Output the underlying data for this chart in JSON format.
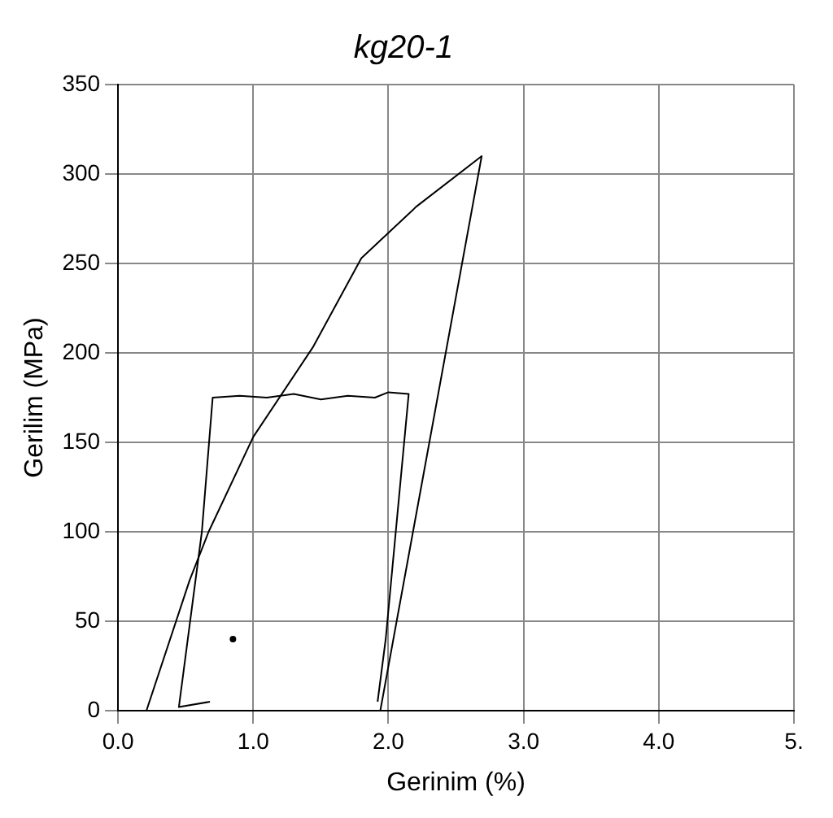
{
  "chart_data": {
    "type": "line",
    "title": "kg20-1",
    "xlabel": "Gerinim (%)",
    "ylabel": "Gerilim (MPa)",
    "xlim": [
      0,
      5
    ],
    "xticks": [
      {
        "value": 0,
        "label": "0.0"
      },
      {
        "value": 1,
        "label": "1.0"
      },
      {
        "value": 2,
        "label": "2.0"
      },
      {
        "value": 3,
        "label": "3.0"
      },
      {
        "value": 4,
        "label": "4.0"
      },
      {
        "value": 5,
        "label": "5."
      }
    ],
    "ylim": [
      0,
      350
    ],
    "yticks": [
      0,
      50,
      100,
      150,
      200,
      250,
      300,
      350
    ],
    "grid": true,
    "legend": false,
    "marker": "none",
    "line_style": "solid",
    "series": [
      {
        "color": "#000000",
        "x": [
          0.21,
          0.53,
          0.67,
          1.0,
          1.44,
          1.8,
          2.21,
          2.69,
          1.94
        ],
        "values": [
          0,
          73,
          100,
          153,
          203,
          253,
          282,
          310,
          0
        ]
      },
      {
        "color": "#000000",
        "x": [
          0.68,
          0.45,
          0.62,
          0.7,
          0.9,
          1.1,
          1.3,
          1.5,
          1.7,
          1.9,
          2.0,
          2.15,
          1.98,
          1.92
        ],
        "values": [
          5,
          2,
          100,
          175,
          176,
          175,
          177,
          174,
          176,
          175,
          178,
          177,
          40,
          5
        ]
      },
      {
        "type": "scatter",
        "marker": "circle",
        "color": "#000000",
        "x": [
          0.85
        ],
        "values": [
          40
        ]
      }
    ]
  }
}
